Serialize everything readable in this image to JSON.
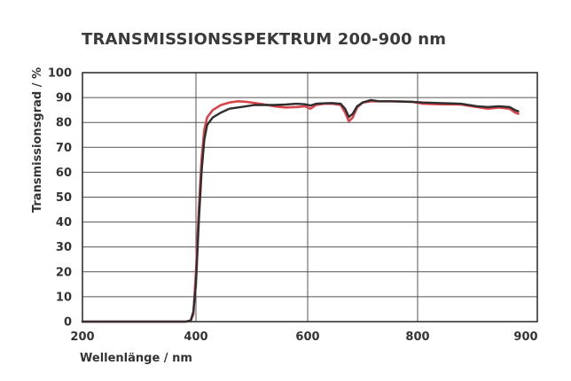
{
  "chart_data": {
    "type": "line",
    "title": "TRANSMISSIONSSPEKTRUM 200-900 nm",
    "xlabel": "Wellenlänge / nm",
    "ylabel": "Transmissionsgrad / %",
    "x_ticks": [
      "200",
      "400",
      "600",
      "800",
      "900"
    ],
    "y_ticks": [
      "0",
      "10",
      "20",
      "30",
      "40",
      "50",
      "60",
      "70",
      "80",
      "90",
      "100"
    ],
    "ylim": [
      0,
      100
    ],
    "grid": true,
    "legend": "none",
    "series": [
      {
        "color": "#d9454a",
        "points": [
          [
            200,
            0
          ],
          [
            380,
            0
          ],
          [
            390,
            0.3
          ],
          [
            395,
            3
          ],
          [
            400,
            20
          ],
          [
            405,
            45
          ],
          [
            410,
            65
          ],
          [
            415,
            77
          ],
          [
            420,
            82
          ],
          [
            430,
            85
          ],
          [
            445,
            87
          ],
          [
            460,
            88
          ],
          [
            475,
            88.5
          ],
          [
            490,
            88.3
          ],
          [
            505,
            87.8
          ],
          [
            520,
            87.3
          ],
          [
            540,
            86.5
          ],
          [
            560,
            86
          ],
          [
            580,
            86.2
          ],
          [
            595,
            86.5
          ],
          [
            605,
            85.5
          ],
          [
            615,
            87
          ],
          [
            630,
            87.5
          ],
          [
            645,
            87.5
          ],
          [
            660,
            87
          ],
          [
            668,
            84
          ],
          [
            675,
            80.5
          ],
          [
            682,
            82
          ],
          [
            690,
            86
          ],
          [
            700,
            88
          ],
          [
            715,
            88.5
          ],
          [
            730,
            88.5
          ],
          [
            750,
            88.5
          ],
          [
            770,
            88.4
          ],
          [
            790,
            88.3
          ],
          [
            805,
            87.5
          ],
          [
            820,
            87.3
          ],
          [
            840,
            87.2
          ],
          [
            855,
            86.2
          ],
          [
            865,
            85.5
          ],
          [
            875,
            86
          ],
          [
            885,
            85.5
          ],
          [
            890,
            84
          ],
          [
            893,
            83.5
          ]
        ]
      },
      {
        "color": "#2e2e2e",
        "points": [
          [
            200,
            0
          ],
          [
            380,
            0
          ],
          [
            390,
            0.5
          ],
          [
            395,
            4
          ],
          [
            400,
            15
          ],
          [
            405,
            40
          ],
          [
            410,
            60
          ],
          [
            415,
            73
          ],
          [
            420,
            79
          ],
          [
            430,
            82
          ],
          [
            445,
            84
          ],
          [
            460,
            85.5
          ],
          [
            475,
            86
          ],
          [
            490,
            86.5
          ],
          [
            505,
            87
          ],
          [
            520,
            87
          ],
          [
            540,
            87
          ],
          [
            560,
            87.2
          ],
          [
            580,
            87.5
          ],
          [
            595,
            87.3
          ],
          [
            605,
            86.8
          ],
          [
            615,
            87.5
          ],
          [
            630,
            87.7
          ],
          [
            645,
            87.8
          ],
          [
            660,
            87.5
          ],
          [
            668,
            85.5
          ],
          [
            675,
            82.2
          ],
          [
            682,
            83.5
          ],
          [
            690,
            86.5
          ],
          [
            700,
            88
          ],
          [
            715,
            89
          ],
          [
            730,
            88.5
          ],
          [
            750,
            88.5
          ],
          [
            770,
            88.4
          ],
          [
            790,
            88.3
          ],
          [
            805,
            88
          ],
          [
            820,
            87.8
          ],
          [
            840,
            87.5
          ],
          [
            855,
            86.5
          ],
          [
            865,
            86.2
          ],
          [
            875,
            86.5
          ],
          [
            885,
            86.2
          ],
          [
            890,
            85
          ],
          [
            893,
            84.5
          ]
        ]
      }
    ]
  }
}
